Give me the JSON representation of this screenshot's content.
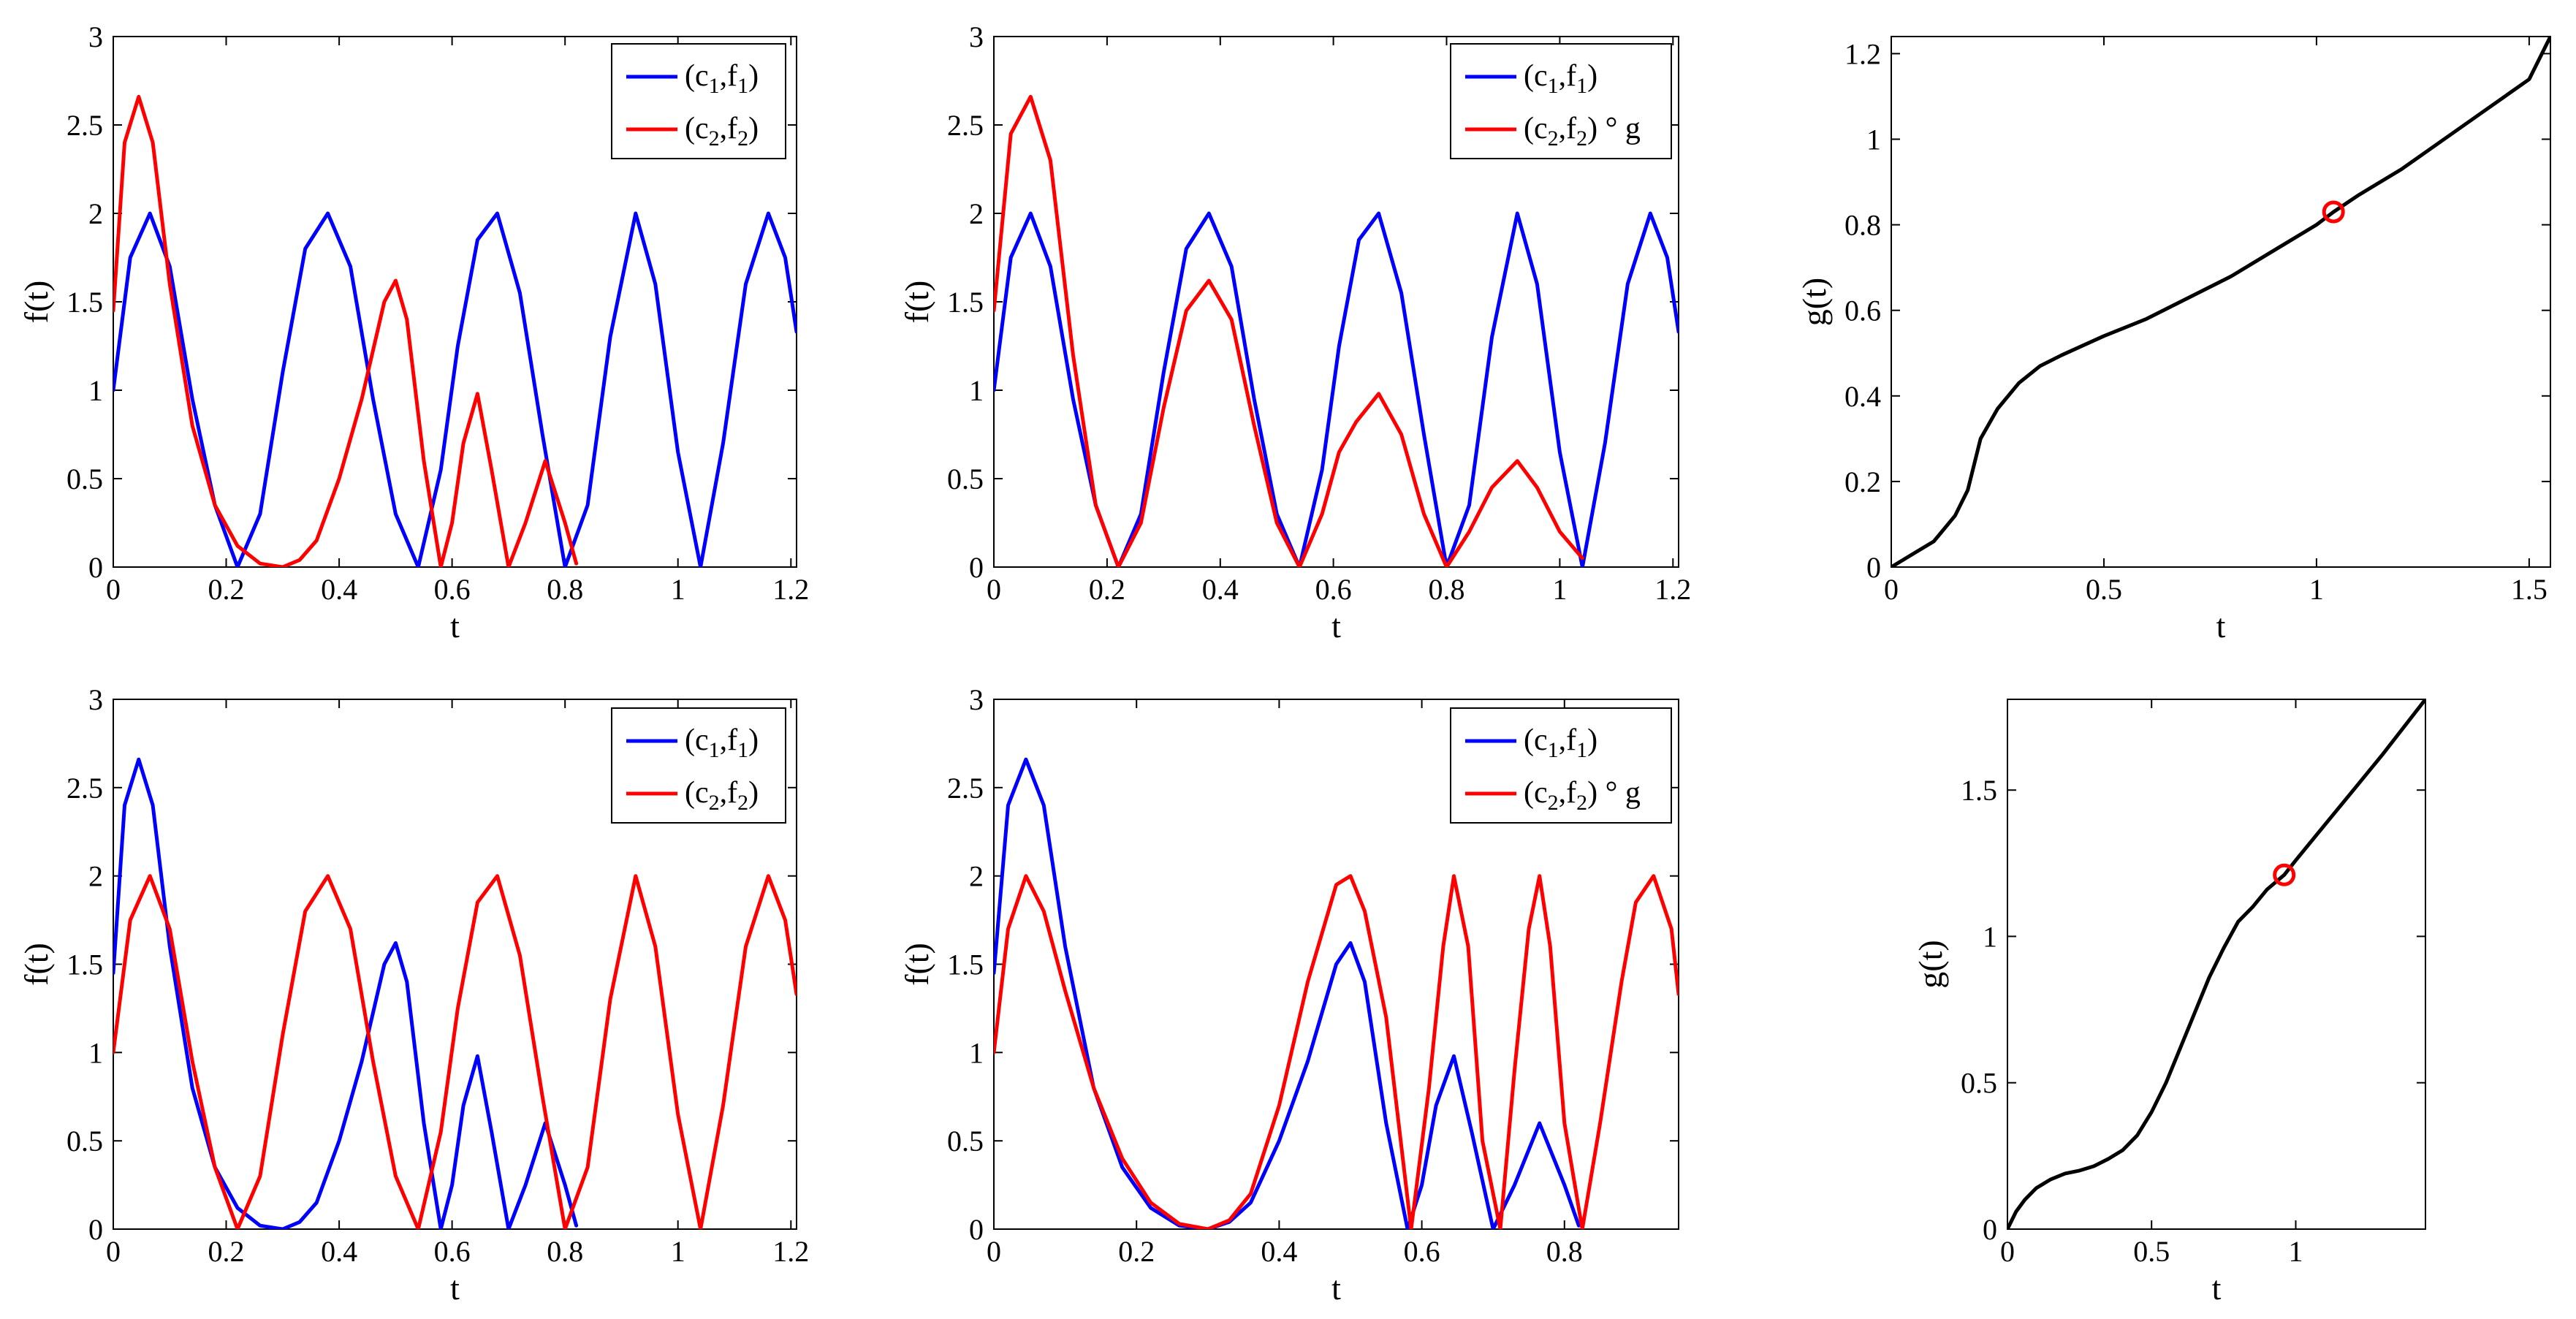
{
  "figure": {
    "colors": {
      "c1f1": "#0000ff",
      "c2f2": "#ff0000",
      "warp": "#000000",
      "marker": "#ff0000",
      "axes": "#000000"
    }
  },
  "chart_data": [
    {
      "id": "top-left",
      "type": "line",
      "xlabel": "t",
      "ylabel": "f(t)",
      "xlim": [
        0,
        1.21
      ],
      "ylim": [
        0,
        3
      ],
      "xticks": [
        0,
        0.2,
        0.4,
        0.6,
        0.8,
        1,
        1.2
      ],
      "xtick_labels": [
        "0",
        "0.2",
        "0.4",
        "0.6",
        "0.8",
        "1",
        "1.2"
      ],
      "yticks": [
        0,
        0.5,
        1,
        1.5,
        2,
        2.5,
        3
      ],
      "ytick_labels": [
        "0",
        "0.5",
        "1",
        "1.5",
        "2",
        "2.5",
        "3"
      ],
      "legend": {
        "position": "top-right",
        "entries": [
          {
            "main": "(c",
            "sub1": "1",
            "mid": ",f",
            "sub2": "1",
            "tail": ")"
          },
          {
            "main": "(c",
            "sub1": "2",
            "mid": ",f",
            "sub2": "2",
            "tail": ")"
          }
        ]
      },
      "series": [
        {
          "name": "(c1,f1)",
          "color": "#0000ff",
          "x": [
            0,
            0.03,
            0.065,
            0.1,
            0.14,
            0.18,
            0.22,
            0.26,
            0.3,
            0.34,
            0.38,
            0.42,
            0.46,
            0.5,
            0.54,
            0.58,
            0.61,
            0.645,
            0.68,
            0.72,
            0.76,
            0.8,
            0.84,
            0.88,
            0.925,
            0.96,
            1.0,
            1.04,
            1.08,
            1.12,
            1.16,
            1.19,
            1.21
          ],
          "y": [
            1,
            1.75,
            2,
            1.7,
            0.95,
            0.35,
            0,
            0.3,
            1.1,
            1.8,
            2,
            1.7,
            0.95,
            0.3,
            0,
            0.55,
            1.25,
            1.85,
            2,
            1.55,
            0.75,
            0,
            0.35,
            1.3,
            2,
            1.6,
            0.65,
            0,
            0.7,
            1.6,
            2,
            1.75,
            1.33
          ]
        },
        {
          "name": "(c2,f2)",
          "color": "#ff0000",
          "x": [
            0,
            0.02,
            0.045,
            0.07,
            0.1,
            0.14,
            0.18,
            0.22,
            0.26,
            0.3,
            0.33,
            0.36,
            0.4,
            0.44,
            0.48,
            0.5,
            0.52,
            0.55,
            0.58,
            0.6,
            0.62,
            0.645,
            0.67,
            0.7,
            0.73,
            0.765,
            0.8,
            0.82
          ],
          "y": [
            1.45,
            2.4,
            2.66,
            2.4,
            1.6,
            0.8,
            0.35,
            0.12,
            0.02,
            0,
            0.04,
            0.15,
            0.5,
            0.95,
            1.5,
            1.62,
            1.4,
            0.6,
            0,
            0.25,
            0.7,
            0.98,
            0.55,
            0,
            0.25,
            0.6,
            0.25,
            0.02
          ]
        }
      ]
    },
    {
      "id": "top-middle",
      "type": "line",
      "xlabel": "t",
      "ylabel": "f(t)",
      "xlim": [
        0,
        1.21
      ],
      "ylim": [
        0,
        3
      ],
      "xticks": [
        0,
        0.2,
        0.4,
        0.6,
        0.8,
        1,
        1.2
      ],
      "xtick_labels": [
        "0",
        "0.2",
        "0.4",
        "0.6",
        "0.8",
        "1",
        "1.2"
      ],
      "yticks": [
        0,
        0.5,
        1,
        1.5,
        2,
        2.5,
        3
      ],
      "ytick_labels": [
        "0",
        "0.5",
        "1",
        "1.5",
        "2",
        "2.5",
        "3"
      ],
      "legend": {
        "position": "top-right",
        "entries": [
          {
            "main": "(c",
            "sub1": "1",
            "mid": ",f",
            "sub2": "1",
            "tail": ")"
          },
          {
            "main": "(c",
            "sub1": "2",
            "mid": ",f",
            "sub2": "2",
            "tail": ") ° g"
          }
        ]
      },
      "series": [
        {
          "name": "(c1,f1)",
          "color": "#0000ff",
          "x": [
            0,
            0.03,
            0.065,
            0.1,
            0.14,
            0.18,
            0.22,
            0.26,
            0.3,
            0.34,
            0.38,
            0.42,
            0.46,
            0.5,
            0.54,
            0.58,
            0.61,
            0.645,
            0.68,
            0.72,
            0.76,
            0.8,
            0.84,
            0.88,
            0.925,
            0.96,
            1.0,
            1.04,
            1.08,
            1.12,
            1.16,
            1.19,
            1.21
          ],
          "y": [
            1,
            1.75,
            2,
            1.7,
            0.95,
            0.35,
            0,
            0.3,
            1.1,
            1.8,
            2,
            1.7,
            0.95,
            0.3,
            0,
            0.55,
            1.25,
            1.85,
            2,
            1.55,
            0.75,
            0,
            0.35,
            1.3,
            2,
            1.6,
            0.65,
            0,
            0.7,
            1.6,
            2,
            1.75,
            1.33
          ]
        },
        {
          "name": "(c2,f2) ° g",
          "color": "#ff0000",
          "x": [
            0,
            0.03,
            0.065,
            0.1,
            0.14,
            0.18,
            0.22,
            0.26,
            0.3,
            0.34,
            0.38,
            0.42,
            0.46,
            0.5,
            0.54,
            0.58,
            0.61,
            0.64,
            0.68,
            0.72,
            0.76,
            0.8,
            0.84,
            0.88,
            0.925,
            0.96,
            1.0,
            1.04
          ],
          "y": [
            1.45,
            2.45,
            2.66,
            2.3,
            1.2,
            0.35,
            0,
            0.25,
            0.9,
            1.45,
            1.62,
            1.4,
            0.8,
            0.25,
            0,
            0.3,
            0.65,
            0.82,
            0.98,
            0.75,
            0.3,
            0,
            0.2,
            0.45,
            0.6,
            0.45,
            0.2,
            0.05
          ]
        }
      ]
    },
    {
      "id": "top-right",
      "type": "line",
      "xlabel": "t",
      "ylabel": "g(t)",
      "xlim": [
        0,
        1.55
      ],
      "ylim": [
        0,
        1.24
      ],
      "xticks": [
        0,
        0.5,
        1,
        1.5
      ],
      "xtick_labels": [
        "0",
        "0.5",
        "1",
        "1.5"
      ],
      "yticks": [
        0,
        0.2,
        0.4,
        0.6,
        0.8,
        1,
        1.2
      ],
      "ytick_labels": [
        "0",
        "0.2",
        "0.4",
        "0.6",
        "0.8",
        "1",
        "1.2"
      ],
      "series": [
        {
          "name": "g",
          "color": "#000000",
          "x": [
            0,
            0.05,
            0.1,
            0.15,
            0.18,
            0.21,
            0.25,
            0.3,
            0.35,
            0.4,
            0.5,
            0.6,
            0.7,
            0.8,
            0.9,
            1.0,
            1.04,
            1.1,
            1.2,
            1.3,
            1.4,
            1.5,
            1.55
          ],
          "y": [
            0,
            0.03,
            0.06,
            0.12,
            0.18,
            0.3,
            0.37,
            0.43,
            0.47,
            0.495,
            0.54,
            0.58,
            0.63,
            0.68,
            0.74,
            0.8,
            0.83,
            0.87,
            0.93,
            1.0,
            1.07,
            1.14,
            1.24
          ]
        }
      ],
      "markers": [
        {
          "x": 1.04,
          "y": 0.83,
          "shape": "circle",
          "color": "#ff0000"
        }
      ]
    },
    {
      "id": "bottom-left",
      "type": "line",
      "xlabel": "t",
      "ylabel": "f(t)",
      "xlim": [
        0,
        1.21
      ],
      "ylim": [
        0,
        3
      ],
      "xticks": [
        0,
        0.2,
        0.4,
        0.6,
        0.8,
        1,
        1.2
      ],
      "xtick_labels": [
        "0",
        "0.2",
        "0.4",
        "0.6",
        "0.8",
        "1",
        "1.2"
      ],
      "yticks": [
        0,
        0.5,
        1,
        1.5,
        2,
        2.5,
        3
      ],
      "ytick_labels": [
        "0",
        "0.5",
        "1",
        "1.5",
        "2",
        "2.5",
        "3"
      ],
      "legend": {
        "position": "top-right",
        "entries": [
          {
            "main": "(c",
            "sub1": "1",
            "mid": ",f",
            "sub2": "1",
            "tail": ")"
          },
          {
            "main": "(c",
            "sub1": "2",
            "mid": ",f",
            "sub2": "2",
            "tail": ")"
          }
        ]
      },
      "series": [
        {
          "name": "(c1,f1)",
          "color": "#0000ff",
          "x": [
            0,
            0.02,
            0.045,
            0.07,
            0.1,
            0.14,
            0.18,
            0.22,
            0.26,
            0.3,
            0.33,
            0.36,
            0.4,
            0.44,
            0.48,
            0.5,
            0.52,
            0.55,
            0.58,
            0.6,
            0.62,
            0.645,
            0.67,
            0.7,
            0.73,
            0.765,
            0.8,
            0.82
          ],
          "y": [
            1.45,
            2.4,
            2.66,
            2.4,
            1.6,
            0.8,
            0.35,
            0.12,
            0.02,
            0,
            0.04,
            0.15,
            0.5,
            0.95,
            1.5,
            1.62,
            1.4,
            0.6,
            0,
            0.25,
            0.7,
            0.98,
            0.55,
            0,
            0.25,
            0.6,
            0.25,
            0.02
          ]
        },
        {
          "name": "(c2,f2)",
          "color": "#ff0000",
          "x": [
            0,
            0.03,
            0.065,
            0.1,
            0.14,
            0.18,
            0.22,
            0.26,
            0.3,
            0.34,
            0.38,
            0.42,
            0.46,
            0.5,
            0.54,
            0.58,
            0.61,
            0.645,
            0.68,
            0.72,
            0.76,
            0.8,
            0.84,
            0.88,
            0.925,
            0.96,
            1.0,
            1.04,
            1.08,
            1.12,
            1.16,
            1.19,
            1.21
          ],
          "y": [
            1,
            1.75,
            2,
            1.7,
            0.95,
            0.35,
            0,
            0.3,
            1.1,
            1.8,
            2,
            1.7,
            0.95,
            0.3,
            0,
            0.55,
            1.25,
            1.85,
            2,
            1.55,
            0.75,
            0,
            0.35,
            1.3,
            2,
            1.6,
            0.65,
            0,
            0.7,
            1.6,
            2,
            1.75,
            1.33
          ]
        }
      ]
    },
    {
      "id": "bottom-middle",
      "type": "line",
      "xlabel": "t",
      "ylabel": "f(t)",
      "xlim": [
        0,
        0.96
      ],
      "ylim": [
        0,
        3
      ],
      "xticks": [
        0,
        0.2,
        0.4,
        0.6,
        0.8
      ],
      "xtick_labels": [
        "0",
        "0.2",
        "0.4",
        "0.6",
        "0.8"
      ],
      "yticks": [
        0,
        0.5,
        1,
        1.5,
        2,
        2.5,
        3
      ],
      "ytick_labels": [
        "0",
        "0.5",
        "1",
        "1.5",
        "2",
        "2.5",
        "3"
      ],
      "legend": {
        "position": "top-right",
        "entries": [
          {
            "main": "(c",
            "sub1": "1",
            "mid": ",f",
            "sub2": "1",
            "tail": ")"
          },
          {
            "main": "(c",
            "sub1": "2",
            "mid": ",f",
            "sub2": "2",
            "tail": ") ° g"
          }
        ]
      },
      "series": [
        {
          "name": "(c1,f1)",
          "color": "#0000ff",
          "x": [
            0,
            0.02,
            0.045,
            0.07,
            0.1,
            0.14,
            0.18,
            0.22,
            0.26,
            0.3,
            0.33,
            0.36,
            0.4,
            0.44,
            0.48,
            0.5,
            0.52,
            0.55,
            0.58,
            0.6,
            0.62,
            0.645,
            0.67,
            0.7,
            0.73,
            0.765,
            0.8,
            0.82
          ],
          "y": [
            1.45,
            2.4,
            2.66,
            2.4,
            1.6,
            0.8,
            0.35,
            0.12,
            0.02,
            0,
            0.04,
            0.15,
            0.5,
            0.95,
            1.5,
            1.62,
            1.4,
            0.6,
            0,
            0.25,
            0.7,
            0.98,
            0.55,
            0,
            0.25,
            0.6,
            0.25,
            0.02
          ]
        },
        {
          "name": "(c2,f2) ° g",
          "color": "#ff0000",
          "x": [
            0,
            0.02,
            0.045,
            0.07,
            0.1,
            0.14,
            0.18,
            0.22,
            0.26,
            0.3,
            0.33,
            0.36,
            0.4,
            0.44,
            0.48,
            0.5,
            0.52,
            0.55,
            0.585,
            0.61,
            0.63,
            0.645,
            0.665,
            0.685,
            0.71,
            0.73,
            0.75,
            0.765,
            0.78,
            0.8,
            0.825,
            0.85,
            0.88,
            0.9,
            0.925,
            0.95,
            0.96
          ],
          "y": [
            1.0,
            1.7,
            2.0,
            1.8,
            1.35,
            0.8,
            0.4,
            0.15,
            0.03,
            0,
            0.05,
            0.2,
            0.7,
            1.4,
            1.95,
            2.0,
            1.8,
            1.2,
            0,
            0.8,
            1.6,
            2.0,
            1.6,
            0.5,
            0,
            0.9,
            1.7,
            2.0,
            1.6,
            0.6,
            0,
            0.6,
            1.4,
            1.85,
            2.0,
            1.7,
            1.33
          ]
        }
      ]
    },
    {
      "id": "bottom-right",
      "type": "line",
      "xlabel": "t",
      "ylabel": "g(t)",
      "xlim": [
        0,
        1.45
      ],
      "ylim": [
        0,
        1.81
      ],
      "xticks": [
        0,
        0.5,
        1
      ],
      "xtick_labels": [
        "0",
        "0.5",
        "1"
      ],
      "yticks": [
        0,
        0.5,
        1,
        1.5
      ],
      "ytick_labels": [
        "0",
        "0.5",
        "1",
        "1.5"
      ],
      "series": [
        {
          "name": "g",
          "color": "#000000",
          "x": [
            0,
            0.03,
            0.06,
            0.1,
            0.15,
            0.2,
            0.25,
            0.3,
            0.35,
            0.4,
            0.45,
            0.5,
            0.55,
            0.6,
            0.65,
            0.7,
            0.75,
            0.8,
            0.85,
            0.9,
            0.96,
            1.0,
            1.1,
            1.2,
            1.3,
            1.45
          ],
          "y": [
            0,
            0.06,
            0.1,
            0.14,
            0.17,
            0.19,
            0.2,
            0.215,
            0.24,
            0.27,
            0.32,
            0.4,
            0.5,
            0.62,
            0.74,
            0.86,
            0.96,
            1.05,
            1.1,
            1.16,
            1.21,
            1.26,
            1.38,
            1.5,
            1.62,
            1.81
          ]
        }
      ],
      "markers": [
        {
          "x": 0.96,
          "y": 1.21,
          "shape": "circle",
          "color": "#ff0000"
        }
      ]
    }
  ]
}
